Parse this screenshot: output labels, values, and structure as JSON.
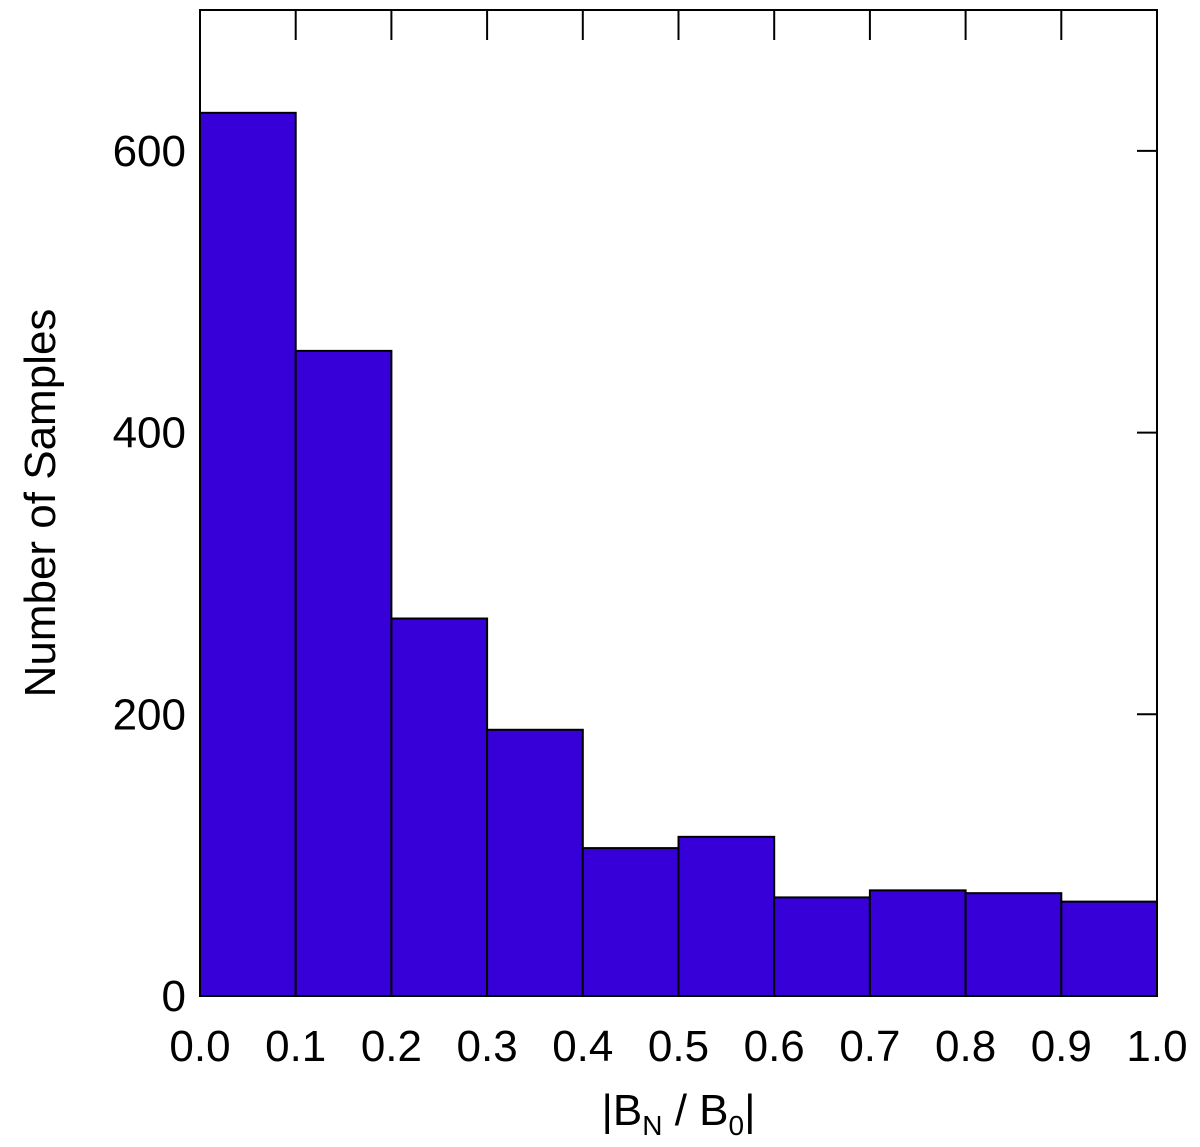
{
  "chart_data": {
    "type": "histogram",
    "xlabel": [
      "|B",
      "N",
      " / B",
      "0",
      "|"
    ],
    "ylabel": "Number of Samples",
    "bins": [
      0,
      0.1,
      0.2,
      0.3,
      0.4,
      0.5,
      0.6,
      0.7,
      0.8,
      0.9,
      1.0
    ],
    "values": [
      627,
      458,
      268,
      189,
      105,
      113,
      70,
      75,
      73,
      67
    ],
    "color": "#3700d9",
    "xlim": [
      0,
      1
    ],
    "ylim": [
      0,
      700
    ],
    "xticks": [
      {
        "value": 0,
        "label": "0.0"
      },
      0.1,
      0.2,
      0.3,
      0.4,
      0.5,
      0.6,
      0.7,
      0.8,
      0.9,
      {
        "value": 1,
        "label": "1.0"
      }
    ],
    "yticks": [
      0,
      200,
      400,
      600
    ]
  }
}
